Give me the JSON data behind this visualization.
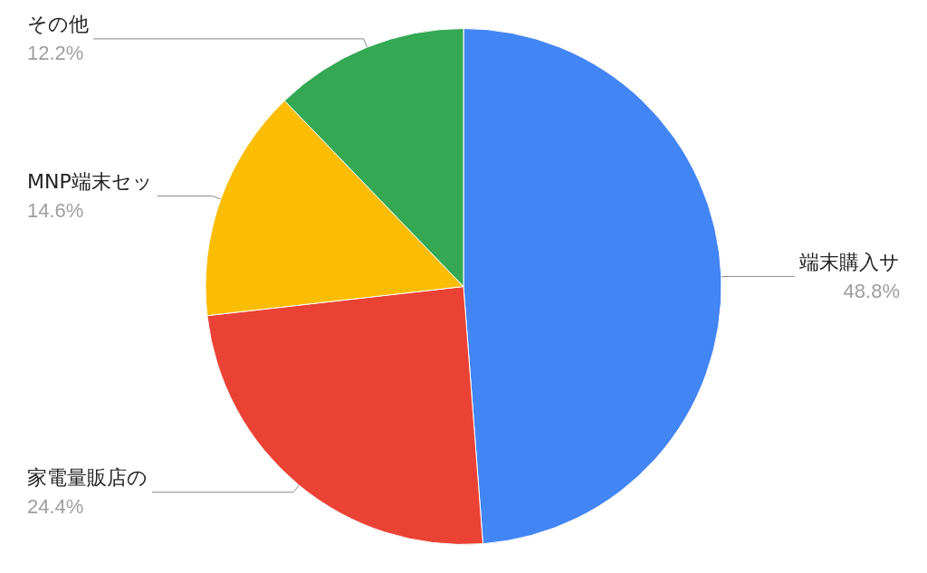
{
  "chart_data": {
    "type": "pie",
    "categories": [
      "端末購入サ",
      "家電量販店の",
      "MNP端末セッ",
      "その他"
    ],
    "values": [
      48.8,
      24.4,
      14.6,
      12.2
    ],
    "value_labels": [
      "48.8%",
      "24.4%",
      "14.6%",
      "12.2%"
    ],
    "colors": [
      "#4285f4",
      "#ea4335",
      "#fbbc04",
      "#34a853"
    ],
    "legend": false
  }
}
